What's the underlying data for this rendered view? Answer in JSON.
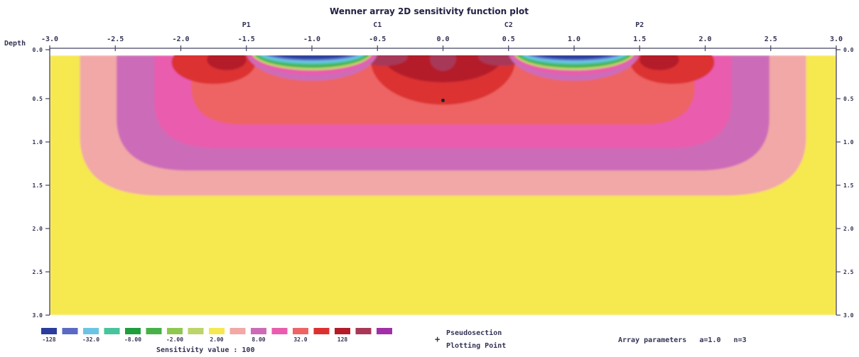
{
  "chart_data": {
    "type": "heatmap",
    "title": "Wenner array 2D sensitivity function plot",
    "ylabel": "Depth",
    "xlim": [
      -3.0,
      3.0
    ],
    "ylim": [
      0.0,
      3.0
    ],
    "x_ticks": [
      "-3.0",
      "-2.5",
      "-2.0",
      "-1.5",
      "-1.0",
      "-0.5",
      "0.0",
      "0.5",
      "1.0",
      "1.5",
      "2.0",
      "2.5",
      "3.0"
    ],
    "y_ticks": [
      "0.0",
      "0.5",
      "1.0",
      "1.5",
      "2.0",
      "2.5",
      "3.0"
    ],
    "electrodes": [
      {
        "label": "P1",
        "x": -1.5
      },
      {
        "label": "C1",
        "x": -0.5
      },
      {
        "label": "C2",
        "x": 0.5
      },
      {
        "label": "P2",
        "x": 1.5
      }
    ],
    "plotting_point": {
      "x": 0.0,
      "depth": 0.52
    },
    "contour_depths_at_center": {
      "1.00": 1.62,
      "2.00": 1.33,
      "4.00": 1.07,
      "8.00": 0.8,
      "16.0": 0.45,
      "32.0": 0.31
    },
    "legend": {
      "colors": [
        "#2a3c9c",
        "#5a6ac4",
        "#6cc4e4",
        "#48c49c",
        "#1e9e3c",
        "#48b048",
        "#8ec850",
        "#bcd46a",
        "#f6e850",
        "#f2a8a6",
        "#cc6cb8",
        "#ea5cae",
        "#ee6464",
        "#dc3030",
        "#b41c2a",
        "#a83858",
        "#a030a8"
      ],
      "labels": [
        "-128",
        "-32.0",
        "-8.00",
        "-2.00",
        "2.00",
        "8.00",
        "32.0",
        "128"
      ],
      "caption": "Sensitivity value : 100"
    },
    "pseudosection_label": [
      "Pseudosection",
      "Plotting Point"
    ],
    "array_parameters": "Array parameters   a=1.0   n=3"
  }
}
